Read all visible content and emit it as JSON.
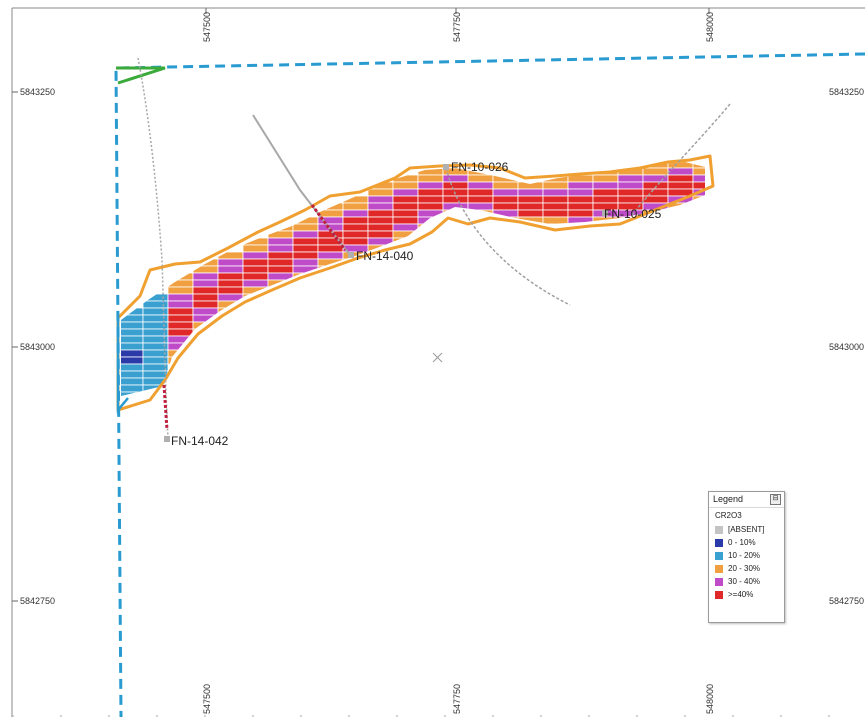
{
  "map": {
    "easting_labels": [
      "547500",
      "547750",
      "548000"
    ],
    "northing_labels": [
      "5843250",
      "5843000",
      "5842750"
    ],
    "drillholes": [
      {
        "id": "FN-10-026"
      },
      {
        "id": "FN-10-025"
      },
      {
        "id": "FN-14-040"
      },
      {
        "id": "FN-14-042"
      }
    ]
  },
  "legend": {
    "title": "Legend",
    "variable": "CR2O3",
    "items": [
      {
        "label": "[ABSENT]",
        "color": "#c4c4c4"
      },
      {
        "label": "0 - 10%",
        "color": "#2a3aa8"
      },
      {
        "label": "10 - 20%",
        "color": "#3aa0d0"
      },
      {
        "label": "20 - 30%",
        "color": "#f0a040"
      },
      {
        "label": "30 - 40%",
        "color": "#c04bc8"
      },
      {
        "label": ">=40%",
        "color": "#e02828"
      }
    ]
  },
  "colors": {
    "boundary": "#2a9bd0",
    "outline": "#f0a030",
    "green_line": "#3aaa3a",
    "trace": "#9a9a9a"
  }
}
